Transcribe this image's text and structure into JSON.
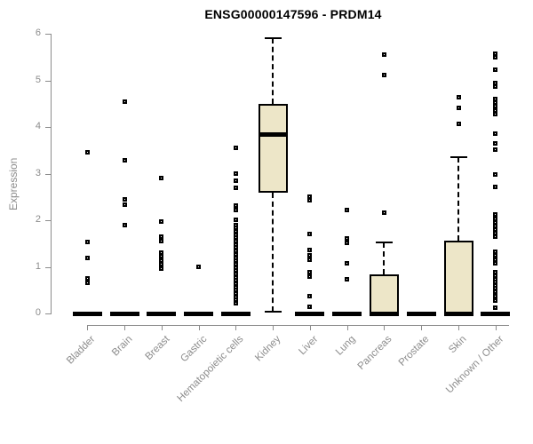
{
  "chart_data": {
    "type": "boxplot",
    "title": "ENSG00000147596 - PRDM14",
    "ylabel": "Expression",
    "ylim": [
      0,
      6
    ],
    "yticks": [
      0,
      1,
      2,
      3,
      4,
      5,
      6
    ],
    "grid": false,
    "box_fill_color": "#EDE6C8",
    "box_line_color": "#000000",
    "axis_color": "#8C8C8C",
    "categories": [
      "Bladder",
      "Brain",
      "Breast",
      "Gastric",
      "Hematopoietic cells",
      "Kidney",
      "Liver",
      "Lung",
      "Pancreas",
      "Prostate",
      "Skin",
      "Unknown / Other"
    ],
    "boxes": [
      {
        "category": "Bladder",
        "q1": 0,
        "median": 0,
        "q3": 0,
        "whisker_low": 0,
        "whisker_high": 0,
        "outliers": [
          3.45,
          1.53,
          1.19,
          0.76,
          0.65
        ]
      },
      {
        "category": "Brain",
        "q1": 0,
        "median": 0,
        "q3": 0,
        "whisker_low": 0,
        "whisker_high": 0,
        "outliers": [
          4.55,
          3.28,
          2.45,
          2.34,
          1.9
        ]
      },
      {
        "category": "Breast",
        "q1": 0,
        "median": 0,
        "q3": 0,
        "whisker_low": 0,
        "whisker_high": 0,
        "outliers": [
          2.9,
          1.97,
          1.64,
          1.55,
          1.31,
          1.22,
          1.14,
          1.06,
          0.97
        ]
      },
      {
        "category": "Gastric",
        "q1": 0,
        "median": 0,
        "q3": 0,
        "whisker_low": 0,
        "whisker_high": 0,
        "outliers": [
          1.0
        ]
      },
      {
        "category": "Hematopoietic cells",
        "q1": 0,
        "median": 0,
        "q3": 0,
        "whisker_low": 0,
        "whisker_high": 0,
        "outliers": [
          3.55,
          3.0,
          2.85,
          2.7,
          2.31,
          2.22,
          2.01,
          1.9,
          1.83,
          1.76,
          1.69,
          1.62,
          1.55,
          1.48,
          1.41,
          1.34,
          1.27,
          1.2,
          1.13,
          1.06,
          0.99,
          0.92,
          0.85,
          0.78,
          0.71,
          0.64,
          0.57,
          0.5,
          0.43,
          0.36,
          0.29,
          0.22
        ]
      },
      {
        "category": "Kidney",
        "q1": 2.6,
        "median": 3.85,
        "q3": 4.5,
        "whisker_low": 0.03,
        "whisker_high": 5.9,
        "outliers": []
      },
      {
        "category": "Liver",
        "q1": 0,
        "median": 0,
        "q3": 0,
        "whisker_low": 0,
        "whisker_high": 0,
        "outliers": [
          2.5,
          2.42,
          1.7,
          1.37,
          1.24,
          1.15,
          0.88,
          0.8,
          0.38,
          0.15
        ]
      },
      {
        "category": "Lung",
        "q1": 0,
        "median": 0,
        "q3": 0,
        "whisker_low": 0,
        "whisker_high": 0,
        "outliers": [
          2.22,
          1.61,
          1.52,
          1.07,
          0.74
        ]
      },
      {
        "category": "Pancreas",
        "q1": 0,
        "median": 0,
        "q3": 0.83,
        "whisker_low": 0,
        "whisker_high": 1.53,
        "outliers": [
          5.55,
          5.12,
          2.17
        ]
      },
      {
        "category": "Prostate",
        "q1": 0,
        "median": 0,
        "q3": 0,
        "whisker_low": 0,
        "whisker_high": 0,
        "outliers": []
      },
      {
        "category": "Skin",
        "q1": 0,
        "median": 0,
        "q3": 1.57,
        "whisker_low": 0,
        "whisker_high": 3.36,
        "outliers": [
          4.63,
          4.41,
          4.06
        ]
      },
      {
        "category": "Unknown / Other",
        "q1": 0,
        "median": 0,
        "q3": 0,
        "whisker_low": 0,
        "whisker_high": 0,
        "outliers": [
          5.58,
          5.5,
          5.22,
          4.95,
          4.87,
          4.6,
          4.52,
          4.44,
          4.36,
          4.28,
          3.85,
          3.64,
          3.52,
          2.98,
          2.72,
          2.12,
          2.03,
          1.96,
          1.88,
          1.8,
          1.72,
          1.64,
          1.33,
          1.24,
          1.15,
          1.07,
          0.88,
          0.81,
          0.74,
          0.67,
          0.6,
          0.55,
          0.47,
          0.38,
          0.28,
          0.13
        ]
      }
    ]
  }
}
